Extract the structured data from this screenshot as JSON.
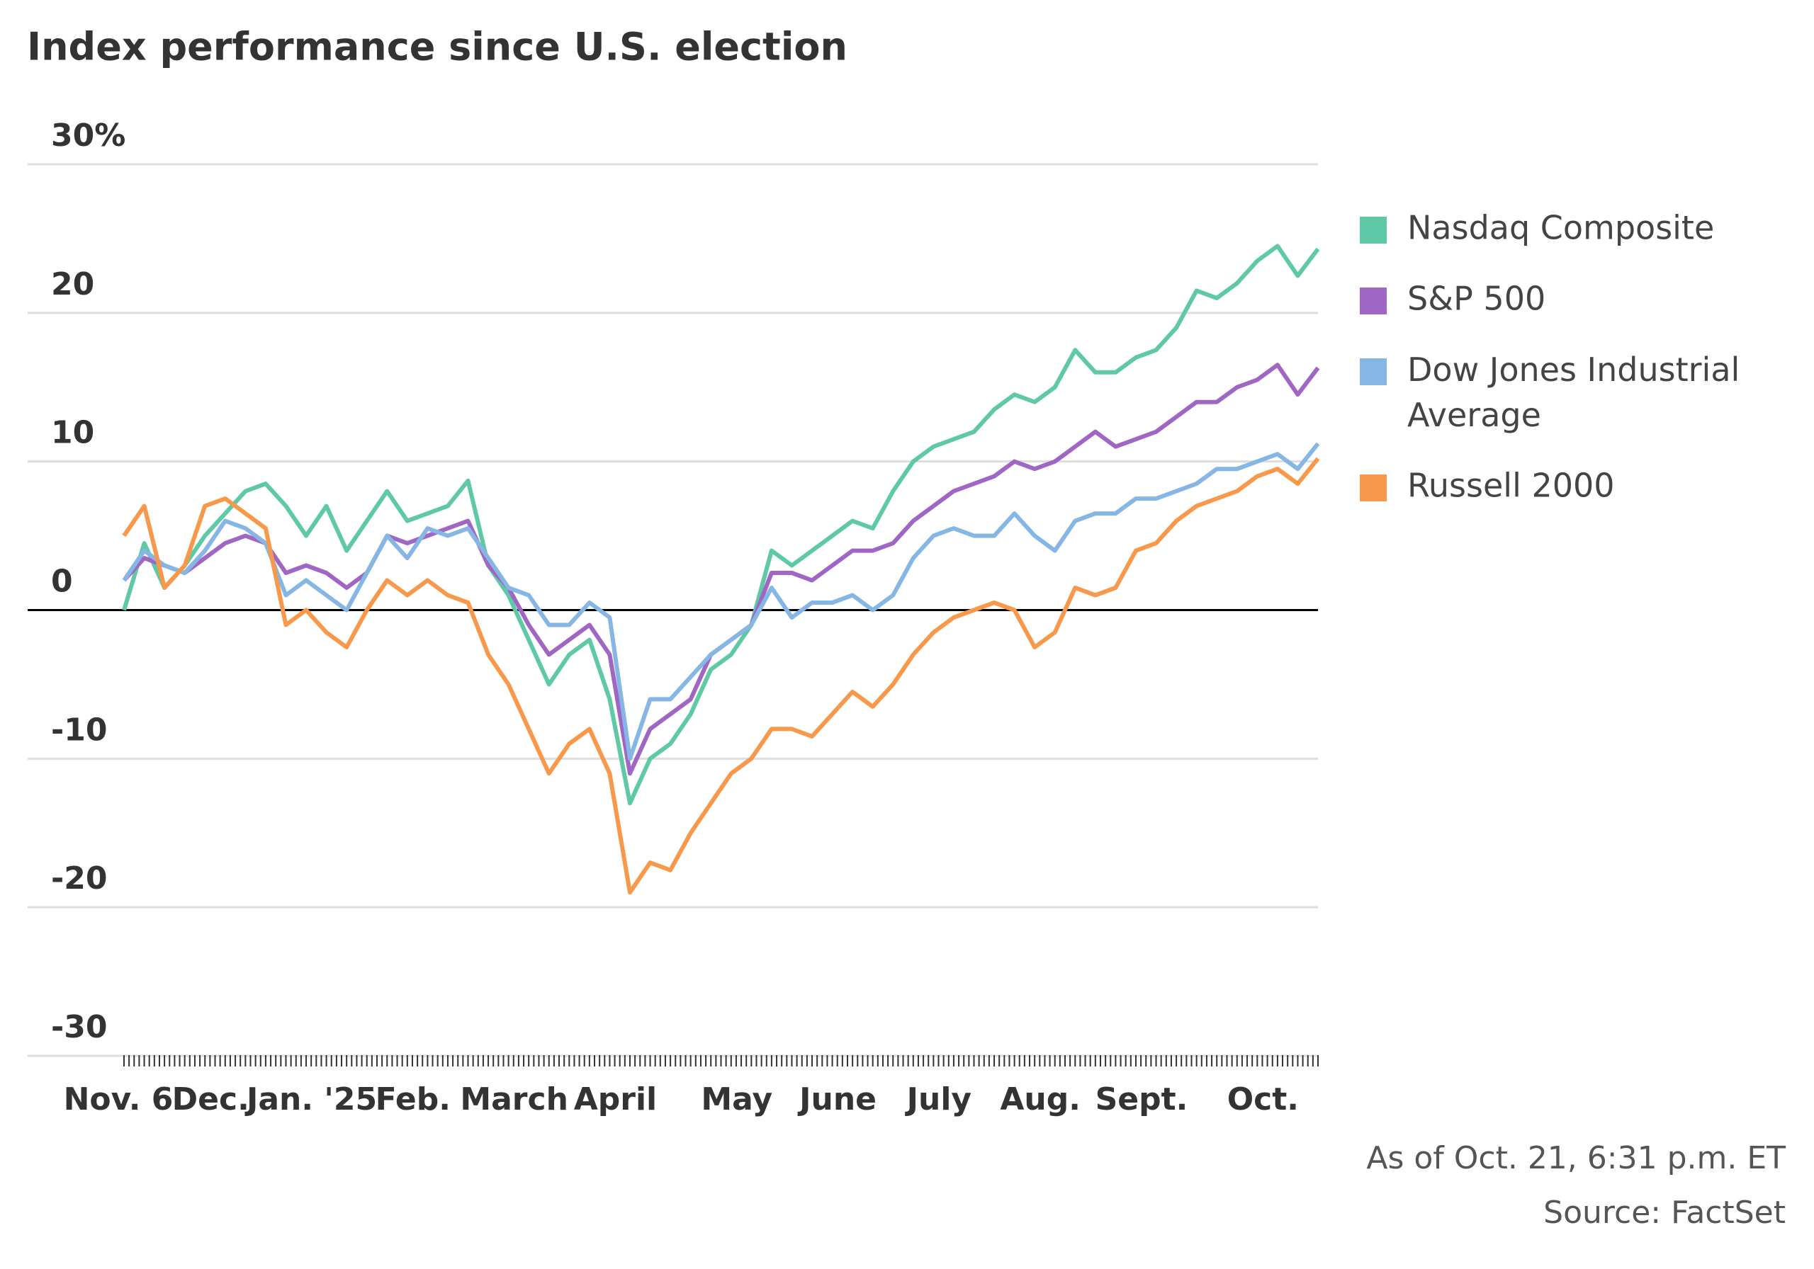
{
  "chart_data": {
    "type": "line",
    "title": "Index performance since U.S. election",
    "categories": [
      "Nov. 6",
      null,
      null,
      null,
      "Dec.",
      null,
      null,
      null,
      null,
      "Jan. '25",
      null,
      null,
      null,
      null,
      "Feb.",
      null,
      null,
      null,
      null,
      "March",
      null,
      null,
      null,
      null,
      "April",
      null,
      null,
      null,
      null,
      null,
      "May",
      null,
      null,
      null,
      null,
      "June",
      null,
      null,
      null,
      null,
      "July",
      null,
      null,
      null,
      null,
      "Aug.",
      null,
      null,
      null,
      null,
      "Sept.",
      null,
      null,
      null,
      null,
      null,
      "Oct.",
      null,
      null,
      null
    ],
    "series": [
      {
        "name": "Nasdaq Composite",
        "color": "#5fc8a6",
        "values": [
          0,
          4.5,
          1.5,
          3,
          5,
          6.5,
          8,
          8.5,
          7,
          5,
          7,
          4,
          6,
          8,
          6,
          6.5,
          7,
          8.7,
          3,
          1,
          -2,
          -5,
          -3,
          -2,
          -6,
          -13,
          -10,
          -9,
          -7,
          -4,
          -3,
          -1,
          4,
          3,
          4,
          5,
          6,
          5.5,
          8,
          10,
          11,
          11.5,
          12,
          13.5,
          14.5,
          14,
          15,
          17.5,
          16,
          16,
          17,
          17.5,
          19,
          21.5,
          21,
          22,
          23.5,
          24.5,
          22.5,
          24.3
        ]
      },
      {
        "name": "S&P 500",
        "color": "#a066c4",
        "values": [
          2,
          3.5,
          3,
          2.5,
          3.5,
          4.5,
          5,
          4.5,
          2.5,
          3,
          2.5,
          1.5,
          2.5,
          5,
          4.5,
          5,
          5.5,
          6,
          3,
          1.5,
          -1,
          -3,
          -2,
          -1,
          -3,
          -11,
          -8,
          -7,
          -6,
          -3,
          -2,
          -1,
          2.5,
          2.5,
          2,
          3,
          4,
          4,
          4.5,
          6,
          7,
          8,
          8.5,
          9,
          10,
          9.5,
          10,
          11,
          12,
          11,
          11.5,
          12,
          13,
          14,
          14,
          15,
          15.5,
          16.5,
          14.5,
          16.3
        ]
      },
      {
        "name": "Dow Jones Industrial Average",
        "color": "#86b6e3",
        "values": [
          2,
          4,
          3,
          2.5,
          4,
          6,
          5.5,
          4.5,
          1,
          2,
          1,
          0,
          2.5,
          5,
          3.5,
          5.5,
          5,
          5.5,
          3.5,
          1.5,
          1,
          -1,
          -1,
          0.5,
          -0.5,
          -10,
          -6,
          -6,
          -4.5,
          -3,
          -2,
          -1,
          1.5,
          -0.5,
          0.5,
          0.5,
          1,
          0,
          1,
          3.5,
          5,
          5.5,
          5,
          5,
          6.5,
          5,
          4,
          6,
          6.5,
          6.5,
          7.5,
          7.5,
          8,
          8.5,
          9.5,
          9.5,
          10,
          10.5,
          9.5,
          11.2
        ]
      },
      {
        "name": "Russell 2000",
        "color": "#f7984b",
        "values": [
          5,
          7,
          1.5,
          3,
          7,
          7.5,
          6.5,
          5.5,
          -1,
          0,
          -1.5,
          -2.5,
          0,
          2,
          1,
          2,
          1,
          0.5,
          -3,
          -5,
          -8,
          -11,
          -9,
          -8,
          -11,
          -19,
          -17,
          -17.5,
          -15,
          -13,
          -11,
          -10,
          -8,
          -8,
          -8.5,
          -7,
          -5.5,
          -6.5,
          -5,
          -3,
          -1.5,
          -0.5,
          0,
          0.5,
          0,
          -2.5,
          -1.5,
          1.5,
          1,
          1.5,
          4,
          4.5,
          6,
          7,
          7.5,
          8,
          9,
          9.5,
          8.5,
          10.2
        ]
      }
    ],
    "ylim": [
      -30,
      30
    ],
    "yticks": [
      -30,
      -20,
      -10,
      0,
      10,
      20,
      {
        "value": 30,
        "label": "30%"
      }
    ],
    "grid": true,
    "legend": "right",
    "notes": [
      "As of Oct. 21, 6:31 p.m. ET",
      "Source: FactSet"
    ]
  }
}
